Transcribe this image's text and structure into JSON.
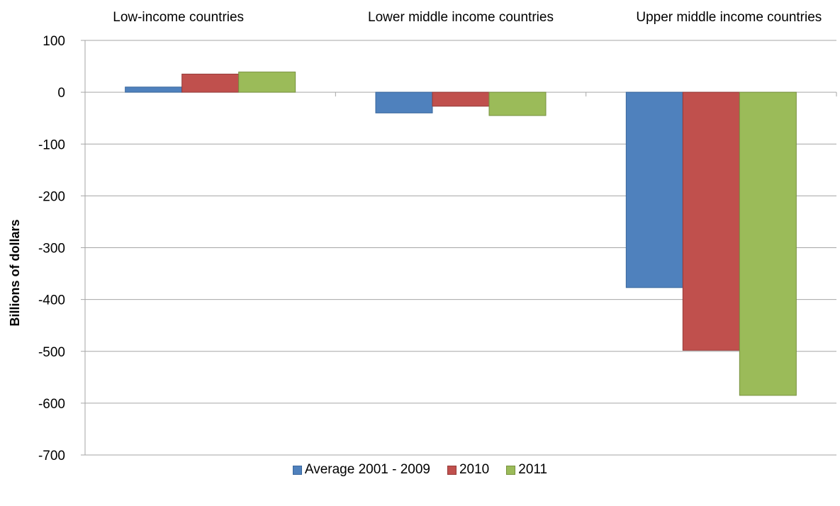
{
  "chart_data": {
    "type": "bar",
    "title": "",
    "xlabel": "",
    "ylabel": "Billions of dollars",
    "ylim": [
      -700,
      100
    ],
    "yticks": [
      100,
      0,
      -100,
      -200,
      -300,
      -400,
      -500,
      -600,
      -700
    ],
    "grid": true,
    "categories": [
      "Low-income countries",
      "Lower middle income countries",
      "Upper middle income countries"
    ],
    "series": [
      {
        "name": "Average 2001 - 2009",
        "color": "#4f81bd",
        "values": [
          10,
          -40,
          -377
        ]
      },
      {
        "name": "2010",
        "color": "#c0504d",
        "values": [
          35,
          -27,
          -498
        ]
      },
      {
        "name": "2011",
        "color": "#9bbb59",
        "values": [
          39,
          -45,
          -585
        ]
      }
    ],
    "legend_position": "bottom"
  }
}
